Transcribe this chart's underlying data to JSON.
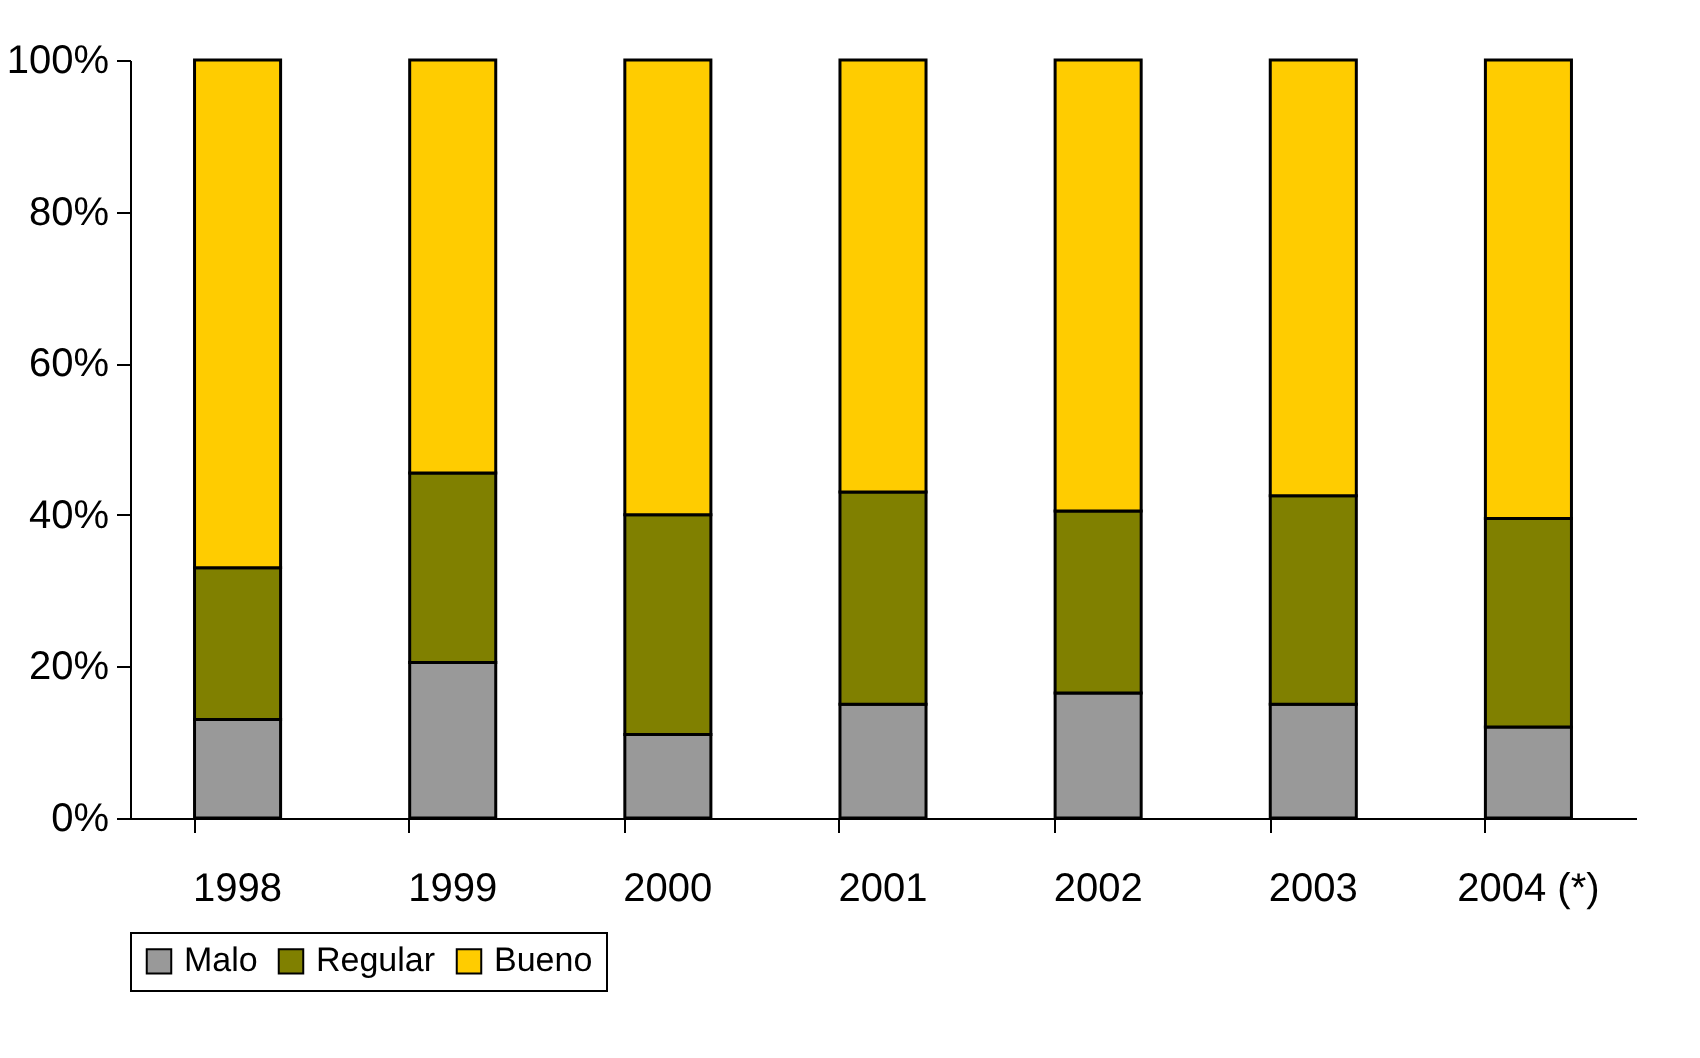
{
  "chart_data": {
    "type": "bar",
    "stacked": true,
    "categories": [
      "1998",
      "1999",
      "2000",
      "2001",
      "2002",
      "2003",
      "2004 (*)"
    ],
    "series": [
      {
        "name": "Malo",
        "color": "#999999",
        "values": [
          13,
          20.5,
          11,
          15,
          16.5,
          15,
          12
        ]
      },
      {
        "name": "Regular",
        "color": "#808000",
        "values": [
          20,
          25,
          29,
          28,
          24,
          27.5,
          27.5
        ]
      },
      {
        "name": "Bueno",
        "color": "#ffcc00",
        "values": [
          67,
          54.5,
          60,
          57,
          59.5,
          57.5,
          60.5
        ]
      }
    ],
    "ylim": [
      0,
      100
    ],
    "yticks": [
      {
        "value": 0,
        "label": "0%"
      },
      {
        "value": 20,
        "label": "20%"
      },
      {
        "value": 40,
        "label": "40%"
      },
      {
        "value": 60,
        "label": "60%"
      },
      {
        "value": 80,
        "label": "80%"
      },
      {
        "value": 100,
        "label": "100%"
      }
    ],
    "grid": false,
    "legend": "bottom"
  }
}
